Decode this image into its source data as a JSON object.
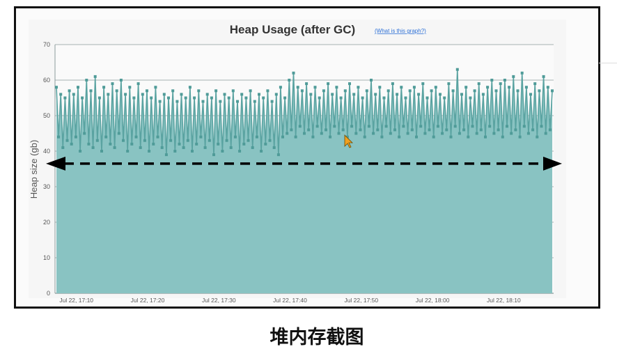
{
  "caption": "堆内存截图",
  "chart_data": {
    "type": "area",
    "title": "Heap Usage (after GC)",
    "help_link": "(What is this graph?)",
    "xlabel": "",
    "ylabel": "Heap size (gb)",
    "ylim": [
      0,
      70
    ],
    "yticks": [
      0,
      10,
      20,
      30,
      40,
      50,
      60,
      70
    ],
    "xticks": [
      "Jul 22, 17:10",
      "Jul 22, 17:20",
      "Jul 22, 17:30",
      "Jul 22, 17:40",
      "Jul 22, 17:50",
      "Jul 22, 18:00",
      "Jul 22, 18:10"
    ],
    "x_range_minutes_after_17_00": [
      7,
      77
    ],
    "grid": true,
    "series": [
      {
        "values": [
          58,
          44,
          56,
          41,
          55,
          43,
          57,
          42,
          56,
          44,
          58,
          40,
          55,
          45,
          60,
          42,
          57,
          41,
          61,
          43,
          55,
          40,
          58,
          44,
          56,
          42,
          59,
          41,
          57,
          45,
          60,
          43,
          56,
          40,
          58,
          42,
          55,
          44,
          59,
          41,
          56,
          43,
          57,
          40,
          55,
          42,
          58,
          44,
          54,
          41,
          56,
          39,
          55,
          43,
          57,
          40,
          54,
          42,
          56,
          41,
          55,
          43,
          58,
          40,
          55,
          42,
          57,
          44,
          54,
          41,
          56,
          43,
          55,
          39,
          57,
          42,
          54,
          40,
          56,
          43,
          55,
          41,
          57,
          44,
          54,
          40,
          56,
          42,
          55,
          43,
          57,
          41,
          54,
          44,
          56,
          40,
          55,
          42,
          57,
          43,
          54,
          41,
          56,
          39,
          58,
          44,
          55,
          45,
          60,
          46,
          62,
          44,
          58,
          47,
          57,
          45,
          59,
          46,
          56,
          44,
          58,
          47,
          55,
          45,
          57,
          46,
          59,
          44,
          56,
          47,
          58,
          45,
          55,
          46,
          57,
          44,
          59,
          47,
          56,
          45,
          58,
          46,
          55,
          44,
          57,
          47,
          60,
          45,
          56,
          46,
          58,
          44,
          55,
          47,
          57,
          45,
          59,
          46,
          56,
          44,
          58,
          47,
          55,
          45,
          57,
          46,
          58,
          44,
          56,
          47,
          59,
          45,
          55,
          46,
          57,
          44,
          58,
          47,
          56,
          45,
          55,
          46,
          59,
          44,
          57,
          47,
          63,
          45,
          56,
          46,
          58,
          44,
          55,
          47,
          57,
          45,
          59,
          46,
          56,
          44,
          58,
          47,
          60,
          45,
          57,
          46,
          59,
          44,
          60,
          47,
          58,
          45,
          61,
          46,
          57,
          44,
          62,
          47,
          58,
          45,
          56,
          46,
          59,
          44,
          57,
          47,
          61,
          45,
          58,
          46,
          57
        ],
        "marker_values": [
          37,
          62,
          61,
          59,
          63,
          62,
          63,
          64,
          62,
          41
        ]
      }
    ],
    "annotation": "dashed double-headed horizontal arrow at about 36.5 gb",
    "colors": {
      "area_fill": "#89c3c2",
      "line": "#5aa3a1",
      "marker": "#4f9b98",
      "grid": "#8a9a9a",
      "arrow": "#000000",
      "help_link": "#2b6fd6",
      "title": "#333333",
      "tick_label": "#555555",
      "cursor": "#f0a020"
    }
  }
}
